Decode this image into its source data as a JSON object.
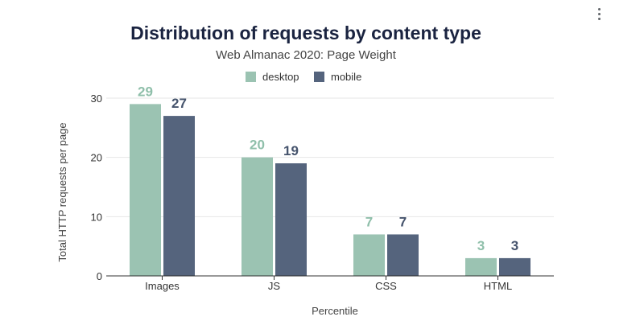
{
  "menu": {
    "icon": "more-vert-icon"
  },
  "chart_data": {
    "type": "bar",
    "title": "Distribution of requests by content type",
    "subtitle": "Web Almanac 2020: Page Weight",
    "categories": [
      "Images",
      "JS",
      "CSS",
      "HTML"
    ],
    "series": [
      {
        "name": "desktop",
        "color": "#9bc3b2",
        "values": [
          29,
          20,
          7,
          3
        ]
      },
      {
        "name": "mobile",
        "color": "#55647d",
        "values": [
          27,
          19,
          7,
          3
        ]
      }
    ],
    "xlabel": "Percentile",
    "ylabel": "Total HTTP requests per page",
    "ylim": [
      0,
      30
    ],
    "yticks": [
      0,
      10,
      20,
      30
    ],
    "grid": true,
    "legend": "top-center"
  }
}
